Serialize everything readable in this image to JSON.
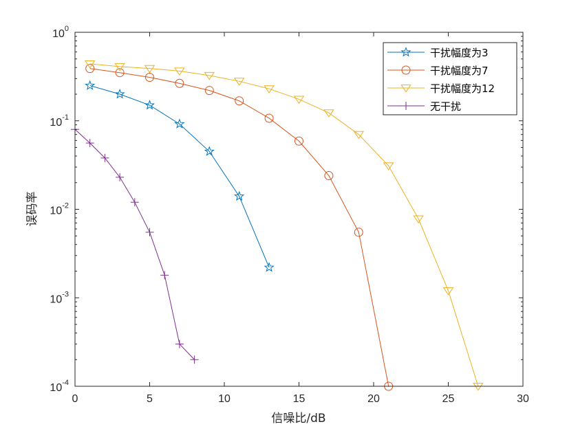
{
  "chart_data": {
    "type": "line",
    "xlabel": "信噪比/dB",
    "ylabel": "误码率",
    "xlim": [
      0,
      30
    ],
    "ylim": [
      0.0001,
      1
    ],
    "yscale": "log",
    "x_ticks": [
      0,
      5,
      10,
      15,
      20,
      25,
      30
    ],
    "x_tick_labels": [
      "0",
      "5",
      "10",
      "15",
      "20",
      "25",
      "30"
    ],
    "y_ticks": [
      {
        "value": 0.0001,
        "base": "10",
        "exp": "-4"
      },
      {
        "value": 0.001,
        "base": "10",
        "exp": "-3"
      },
      {
        "value": 0.01,
        "base": "10",
        "exp": "-2"
      },
      {
        "value": 0.1,
        "base": "10",
        "exp": "-1"
      },
      {
        "value": 1,
        "base": "10",
        "exp": "0"
      }
    ],
    "grid": false,
    "legend_position": "top-right",
    "series": [
      {
        "name": "干扰幅度为3",
        "color": "#0072BD",
        "marker": "star",
        "x": [
          1,
          3,
          5,
          7,
          9,
          11,
          13
        ],
        "y": [
          0.25,
          0.2,
          0.15,
          0.092,
          0.045,
          0.014,
          0.0022
        ]
      },
      {
        "name": "干扰幅度为7",
        "color": "#D95319",
        "marker": "circle",
        "x": [
          1,
          3,
          5,
          7,
          9,
          11,
          13,
          15,
          17,
          19,
          21
        ],
        "y": [
          0.39,
          0.35,
          0.31,
          0.265,
          0.22,
          0.168,
          0.107,
          0.059,
          0.024,
          0.0055,
          0.0001
        ]
      },
      {
        "name": "干扰幅度为12",
        "color": "#EDB120",
        "marker": "triangle-down",
        "x": [
          1,
          3,
          5,
          7,
          9,
          11,
          13,
          15,
          17,
          19,
          21,
          23,
          25,
          27
        ],
        "y": [
          0.44,
          0.41,
          0.39,
          0.365,
          0.325,
          0.28,
          0.23,
          0.175,
          0.123,
          0.07,
          0.031,
          0.0078,
          0.0012,
          0.0001
        ]
      },
      {
        "name": "无干扰",
        "color": "#7E2F8E",
        "marker": "plus",
        "x": [
          0,
          1,
          2,
          3,
          4,
          5,
          6,
          7,
          8
        ],
        "y": [
          0.08,
          0.056,
          0.038,
          0.023,
          0.012,
          0.0055,
          0.0018,
          0.0003,
          0.0002
        ]
      }
    ]
  }
}
